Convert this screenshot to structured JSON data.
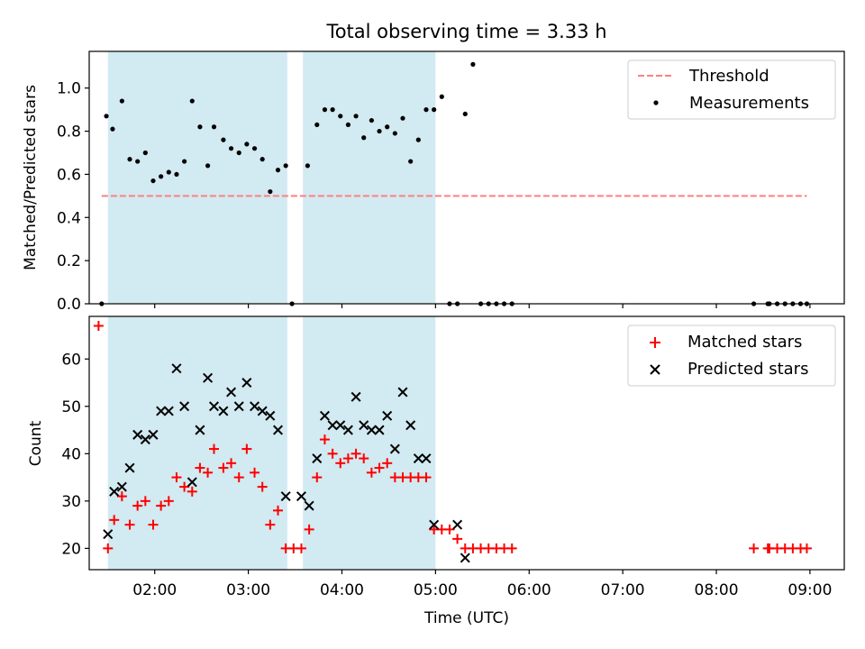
{
  "chart_data": [
    {
      "type": "scatter",
      "title": "Total observing time = 3.33 h",
      "xlabel": "",
      "ylabel": "Matched/Predicted stars",
      "xlim": [
        "01:18",
        "09:22"
      ],
      "ylim": [
        0,
        1.17
      ],
      "yticks": [
        "0.0",
        "0.2",
        "0.4",
        "0.6",
        "0.8",
        "1.0"
      ],
      "grid": false,
      "legend": "top-right",
      "colors": {
        "threshold": "#ff7f7f",
        "measurements": "#000000",
        "span": "#add8e6"
      },
      "shaded_intervals": [
        [
          "01:30",
          "03:25"
        ],
        [
          "03:35",
          "05:00"
        ]
      ],
      "threshold": {
        "name": "Threshold",
        "value": 0.5,
        "x_range": [
          "01:26",
          "08:58"
        ]
      },
      "series": [
        {
          "name": "Measurements",
          "x": [
            "01:26",
            "01:29",
            "01:33",
            "01:39",
            "01:44",
            "01:49",
            "01:54",
            "01:59",
            "02:04",
            "02:09",
            "02:14",
            "02:19",
            "02:24",
            "02:29",
            "02:34",
            "02:38",
            "02:44",
            "02:49",
            "02:54",
            "02:59",
            "03:04",
            "03:09",
            "03:14",
            "03:19",
            "03:24",
            "03:28",
            "03:38",
            "03:44",
            "03:49",
            "03:54",
            "03:59",
            "04:04",
            "04:09",
            "04:14",
            "04:19",
            "04:24",
            "04:29",
            "04:34",
            "04:39",
            "04:44",
            "04:49",
            "04:54",
            "04:59",
            "05:04",
            "05:09",
            "05:14",
            "05:19",
            "05:24",
            "05:29",
            "05:34",
            "05:39",
            "05:44",
            "05:49",
            "08:24",
            "08:33",
            "08:34",
            "08:39",
            "08:44",
            "08:49",
            "08:54",
            "08:58"
          ],
          "y": [
            0,
            0.87,
            0.81,
            0.94,
            0.67,
            0.66,
            0.7,
            0.57,
            0.59,
            0.61,
            0.6,
            0.66,
            0.94,
            0.82,
            0.64,
            0.82,
            0.76,
            0.72,
            0.7,
            0.74,
            0.72,
            0.67,
            0.52,
            0.62,
            0.64,
            0,
            0.64,
            0.83,
            0.9,
            0.9,
            0.87,
            0.83,
            0.87,
            0.77,
            0.85,
            0.8,
            0.82,
            0.79,
            0.86,
            0.66,
            0.76,
            0.9,
            0.9,
            0.96,
            0,
            0,
            0.88,
            1.11,
            0,
            0,
            0,
            0,
            0,
            0,
            0,
            0,
            0,
            0,
            0,
            0,
            0
          ]
        }
      ]
    },
    {
      "type": "scatter",
      "title": "",
      "xlabel": "Time (UTC)",
      "ylabel": "Count",
      "xlim": [
        "01:18",
        "09:22"
      ],
      "ylim": [
        15.5,
        69
      ],
      "yticks": [
        "20",
        "30",
        "40",
        "50",
        "60"
      ],
      "xticks": [
        "02:00",
        "03:00",
        "04:00",
        "05:00",
        "06:00",
        "07:00",
        "08:00",
        "09:00"
      ],
      "grid": false,
      "legend": "top-right",
      "colors": {
        "matched": "#ff0000",
        "predicted": "#000000",
        "span": "#add8e6"
      },
      "shaded_intervals": [
        [
          "01:30",
          "03:25"
        ],
        [
          "03:35",
          "05:00"
        ]
      ],
      "series": [
        {
          "name": "Matched stars",
          "x": [
            "01:24",
            "01:30",
            "01:34",
            "01:39",
            "01:44",
            "01:49",
            "01:54",
            "01:59",
            "02:04",
            "02:09",
            "02:14",
            "02:19",
            "02:24",
            "02:29",
            "02:34",
            "02:38",
            "02:44",
            "02:49",
            "02:54",
            "02:59",
            "03:04",
            "03:09",
            "03:14",
            "03:19",
            "03:24",
            "03:29",
            "03:34",
            "03:39",
            "03:44",
            "03:49",
            "03:54",
            "03:59",
            "04:04",
            "04:09",
            "04:14",
            "04:19",
            "04:24",
            "04:29",
            "04:34",
            "04:39",
            "04:44",
            "04:49",
            "04:54",
            "04:59",
            "05:04",
            "05:09",
            "05:14",
            "05:19",
            "05:24",
            "05:29",
            "05:34",
            "05:39",
            "05:44",
            "05:49",
            "08:24",
            "08:33",
            "08:34",
            "08:39",
            "08:44",
            "08:49",
            "08:54",
            "08:58"
          ],
          "y": [
            67,
            20,
            26,
            31,
            25,
            29,
            30,
            25,
            29,
            30,
            35,
            33,
            32,
            37,
            36,
            41,
            37,
            38,
            35,
            41,
            36,
            33,
            25,
            28,
            20,
            20,
            20,
            24,
            35,
            43,
            40,
            38,
            39,
            40,
            39,
            36,
            37,
            38,
            35,
            35,
            35,
            35,
            35,
            24,
            24,
            24,
            22,
            20,
            20,
            20,
            20,
            20,
            20,
            20,
            20,
            20,
            20,
            20,
            20,
            20,
            20,
            20
          ]
        },
        {
          "name": "Predicted stars",
          "x": [
            "01:30",
            "01:34",
            "01:39",
            "01:44",
            "01:49",
            "01:54",
            "01:59",
            "02:04",
            "02:09",
            "02:14",
            "02:19",
            "02:24",
            "02:29",
            "02:34",
            "02:38",
            "02:44",
            "02:49",
            "02:54",
            "02:59",
            "03:04",
            "03:09",
            "03:14",
            "03:19",
            "03:24",
            "03:34",
            "03:39",
            "03:44",
            "03:49",
            "03:54",
            "03:59",
            "04:04",
            "04:09",
            "04:14",
            "04:19",
            "04:24",
            "04:29",
            "04:34",
            "04:39",
            "04:44",
            "04:49",
            "04:54",
            "04:59",
            "05:14",
            "05:19"
          ],
          "y": [
            23,
            32,
            33,
            37,
            44,
            43,
            44,
            49,
            49,
            58,
            50,
            34,
            45,
            56,
            50,
            49,
            53,
            50,
            55,
            50,
            49,
            48,
            45,
            31,
            31,
            29,
            39,
            48,
            46,
            46,
            45,
            52,
            46,
            45,
            45,
            48,
            41,
            53,
            46,
            39,
            39,
            25,
            25,
            18
          ]
        }
      ]
    }
  ]
}
